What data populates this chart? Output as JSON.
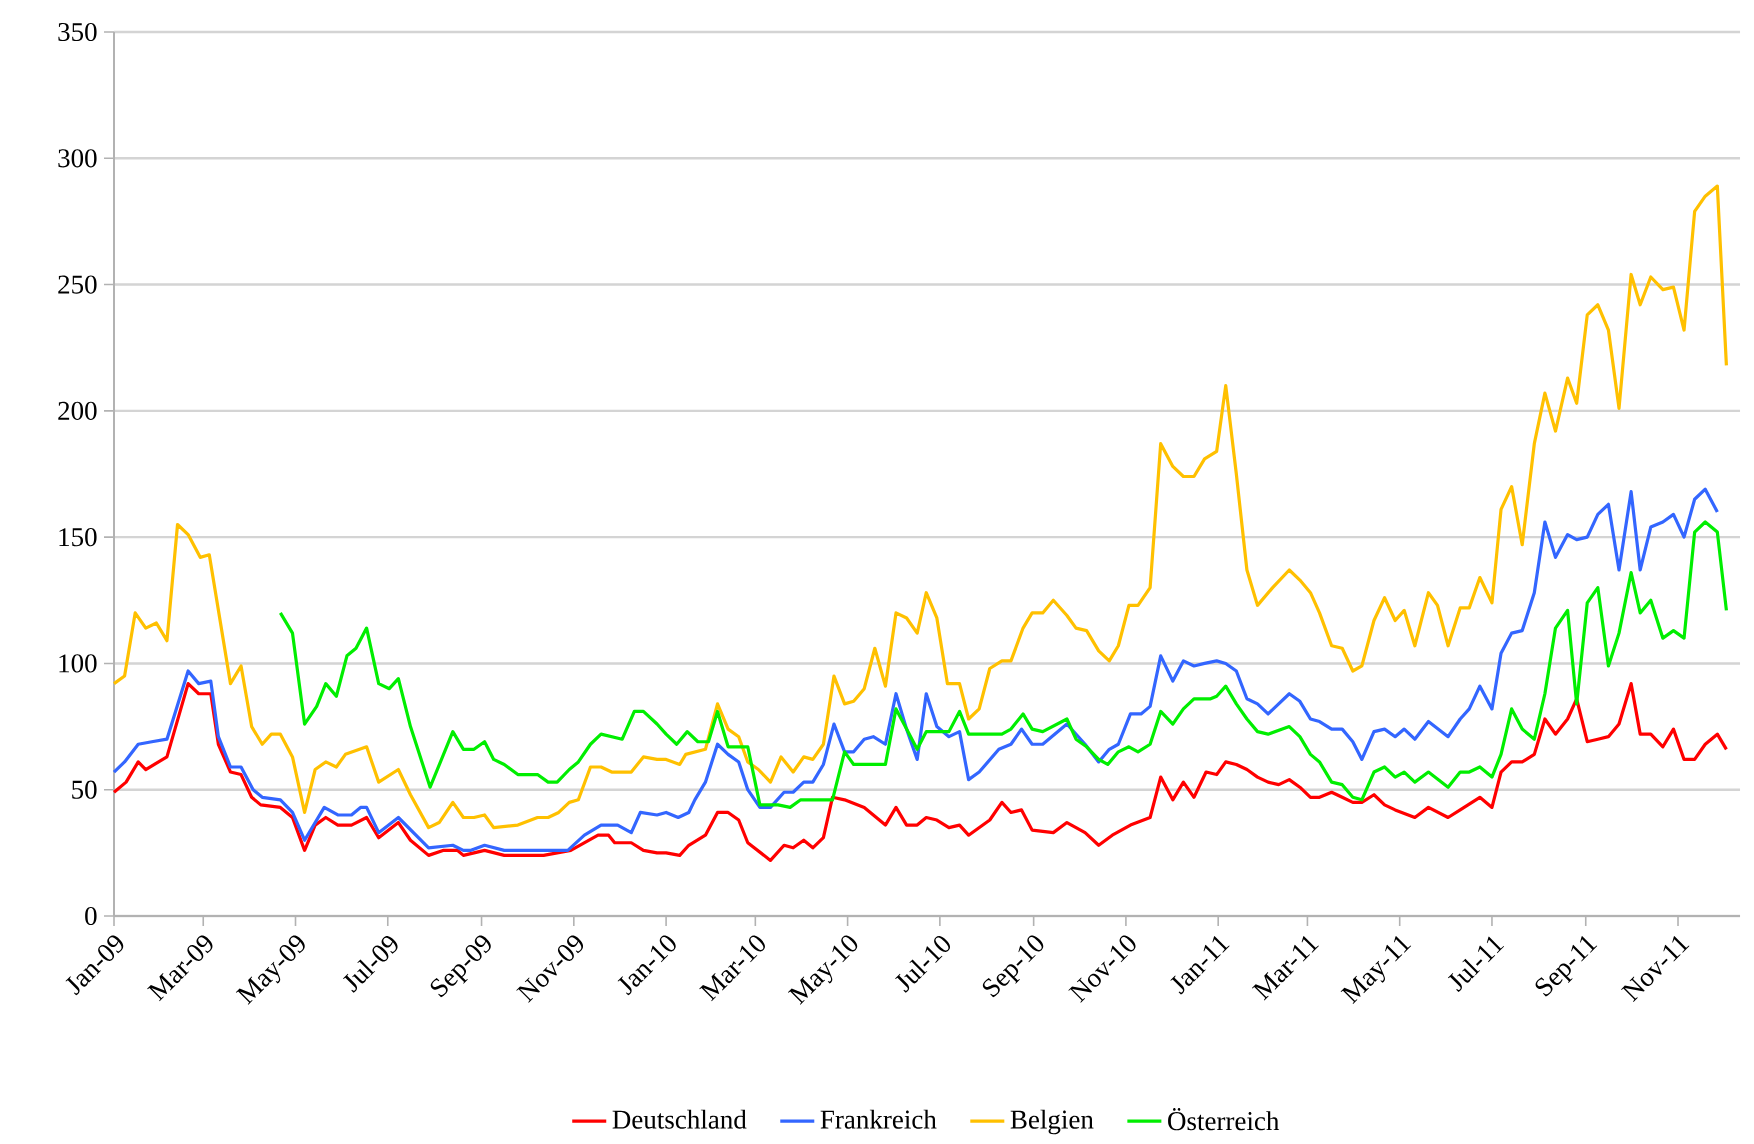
{
  "chart_data": {
    "type": "line",
    "grid": "y",
    "legend": "bottom",
    "marker": "none",
    "line_style": "solid",
    "ylim": [
      0,
      350
    ],
    "yticks": [
      0,
      50,
      100,
      150,
      200,
      250,
      300,
      350
    ],
    "xlim": [
      "2009-01-01",
      "2011-12-12"
    ],
    "xticks": [
      {
        "value": "2009-01-01",
        "label": "Jan-09"
      },
      {
        "value": "2009-03-01",
        "label": "Mar-09"
      },
      {
        "value": "2009-05-01",
        "label": "May-09"
      },
      {
        "value": "2009-07-01",
        "label": "Jul-09"
      },
      {
        "value": "2009-09-01",
        "label": "Sep-09"
      },
      {
        "value": "2009-11-01",
        "label": "Nov-09"
      },
      {
        "value": "2010-01-01",
        "label": "Jan-10"
      },
      {
        "value": "2010-03-01",
        "label": "Mar-10"
      },
      {
        "value": "2010-05-01",
        "label": "May-10"
      },
      {
        "value": "2010-07-01",
        "label": "Jul-10"
      },
      {
        "value": "2010-09-01",
        "label": "Sep-10"
      },
      {
        "value": "2010-11-01",
        "label": "Nov-10"
      },
      {
        "value": "2011-01-01",
        "label": "Jan-11"
      },
      {
        "value": "2011-03-01",
        "label": "Mar-11"
      },
      {
        "value": "2011-05-01",
        "label": "May-11"
      },
      {
        "value": "2011-07-01",
        "label": "Jul-11"
      },
      {
        "value": "2011-09-01",
        "label": "Sep-11"
      },
      {
        "value": "2011-11-01",
        "label": "Nov-11"
      }
    ],
    "series": [
      {
        "name": "Deutschland",
        "color": "#ff0000",
        "x": [
          "2009-01-01",
          "2009-01-09",
          "2009-01-17",
          "2009-01-22",
          "2009-02-05",
          "2009-02-19",
          "2009-02-26",
          "2009-03-06",
          "2009-03-11",
          "2009-03-19",
          "2009-03-26",
          "2009-04-02",
          "2009-04-08",
          "2009-04-21",
          "2009-04-29",
          "2009-05-07",
          "2009-05-14",
          "2009-05-21",
          "2009-05-29",
          "2009-06-07",
          "2009-06-17",
          "2009-06-25",
          "2009-07-08",
          "2009-07-16",
          "2009-07-28",
          "2009-08-07",
          "2009-08-16",
          "2009-08-20",
          "2009-09-03",
          "2009-09-16",
          "2009-10-12",
          "2009-10-30",
          "2009-11-17",
          "2009-11-24",
          "2009-11-28",
          "2009-12-09",
          "2009-12-17",
          "2009-12-26",
          "2010-01-01",
          "2010-01-10",
          "2010-01-16",
          "2010-01-27",
          "2010-02-04",
          "2010-02-11",
          "2010-02-18",
          "2010-02-24",
          "2010-03-11",
          "2010-03-20",
          "2010-03-26",
          "2010-04-02",
          "2010-04-08",
          "2010-04-15",
          "2010-04-21",
          "2010-04-29",
          "2010-05-12",
          "2010-05-26",
          "2010-06-02",
          "2010-06-09",
          "2010-06-16",
          "2010-06-22",
          "2010-06-29",
          "2010-07-07",
          "2010-07-14",
          "2010-07-20",
          "2010-08-03",
          "2010-08-11",
          "2010-08-17",
          "2010-08-24",
          "2010-08-31",
          "2010-09-14",
          "2010-09-23",
          "2010-10-05",
          "2010-10-14",
          "2010-10-23",
          "2010-11-04",
          "2010-11-17",
          "2010-11-24",
          "2010-12-02",
          "2010-12-09",
          "2010-12-16",
          "2010-12-24",
          "2010-12-31",
          "2011-01-06",
          "2011-01-13",
          "2011-01-20",
          "2011-01-27",
          "2011-02-03",
          "2011-02-10",
          "2011-02-17",
          "2011-02-24",
          "2011-03-03",
          "2011-03-09",
          "2011-03-17",
          "2011-03-24",
          "2011-03-31",
          "2011-04-06",
          "2011-04-14",
          "2011-04-21",
          "2011-04-28",
          "2011-05-11",
          "2011-05-20",
          "2011-06-02",
          "2011-06-10",
          "2011-06-23",
          "2011-07-01",
          "2011-07-07",
          "2011-07-14",
          "2011-07-21",
          "2011-07-29",
          "2011-08-05",
          "2011-08-12",
          "2011-08-20",
          "2011-08-26",
          "2011-09-02",
          "2011-09-09",
          "2011-09-16",
          "2011-09-23",
          "2011-10-01",
          "2011-10-07",
          "2011-10-14",
          "2011-10-22",
          "2011-10-29",
          "2011-11-05",
          "2011-11-12",
          "2011-11-19",
          "2011-11-27",
          "2011-12-03"
        ],
        "values": [
          49,
          53,
          61,
          58,
          63,
          92,
          88,
          88,
          68,
          57,
          56,
          47,
          44,
          43,
          39,
          26,
          36,
          39,
          36,
          36,
          39,
          31,
          37,
          30,
          24,
          26,
          26,
          24,
          26,
          24,
          24,
          26,
          32,
          32,
          29,
          29,
          26,
          25,
          25,
          24,
          28,
          32,
          41,
          41,
          38,
          29,
          22,
          28,
          27,
          30,
          27,
          31,
          47,
          46,
          43,
          36,
          43,
          36,
          36,
          39,
          38,
          35,
          36,
          32,
          38,
          45,
          41,
          42,
          34,
          33,
          37,
          33,
          28,
          32,
          36,
          39,
          55,
          46,
          53,
          47,
          57,
          56,
          61,
          60,
          58,
          55,
          53,
          52,
          54,
          51,
          47,
          47,
          49,
          47,
          45,
          45,
          48,
          44,
          42,
          39,
          43,
          39,
          42,
          47,
          43,
          57,
          61,
          61,
          64,
          78,
          72,
          78,
          86,
          69,
          70,
          71,
          76,
          92,
          72,
          72,
          67,
          74,
          62,
          62,
          68,
          72,
          66
        ]
      },
      {
        "name": "Frankreich",
        "color": "#3366ff",
        "x": [
          "2009-01-01",
          "2009-01-08",
          "2009-01-17",
          "2009-01-26",
          "2009-02-05",
          "2009-02-19",
          "2009-02-26",
          "2009-03-06",
          "2009-03-11",
          "2009-03-19",
          "2009-03-26",
          "2009-04-03",
          "2009-04-09",
          "2009-04-21",
          "2009-04-29",
          "2009-05-07",
          "2009-05-20",
          "2009-05-29",
          "2009-06-07",
          "2009-06-13",
          "2009-06-17",
          "2009-06-25",
          "2009-07-08",
          "2009-07-28",
          "2009-08-13",
          "2009-08-20",
          "2009-08-25",
          "2009-09-03",
          "2009-09-16",
          "2009-10-12",
          "2009-10-28",
          "2009-11-08",
          "2009-11-19",
          "2009-11-30",
          "2009-12-09",
          "2009-12-15",
          "2009-12-26",
          "2010-01-01",
          "2010-01-09",
          "2010-01-16",
          "2010-01-20",
          "2010-01-27",
          "2010-02-04",
          "2010-02-11",
          "2010-02-18",
          "2010-02-24",
          "2010-03-04",
          "2010-03-11",
          "2010-03-20",
          "2010-03-26",
          "2010-04-02",
          "2010-04-08",
          "2010-04-15",
          "2010-04-22",
          "2010-04-29",
          "2010-05-05",
          "2010-05-12",
          "2010-05-18",
          "2010-05-26",
          "2010-06-02",
          "2010-06-09",
          "2010-06-16",
          "2010-06-22",
          "2010-06-29",
          "2010-07-07",
          "2010-07-14",
          "2010-07-20",
          "2010-07-27",
          "2010-08-09",
          "2010-08-17",
          "2010-08-24",
          "2010-08-31",
          "2010-09-07",
          "2010-09-23",
          "2010-10-05",
          "2010-10-14",
          "2010-10-21",
          "2010-10-27",
          "2010-11-04",
          "2010-11-11",
          "2010-11-17",
          "2010-11-24",
          "2010-12-02",
          "2010-12-09",
          "2010-12-16",
          "2010-12-23",
          "2010-12-31",
          "2011-01-06",
          "2011-01-13",
          "2011-01-20",
          "2011-01-27",
          "2011-02-03",
          "2011-02-17",
          "2011-02-24",
          "2011-03-03",
          "2011-03-09",
          "2011-03-17",
          "2011-03-24",
          "2011-03-31",
          "2011-04-06",
          "2011-04-14",
          "2011-04-21",
          "2011-04-28",
          "2011-05-04",
          "2011-05-11",
          "2011-05-20",
          "2011-06-02",
          "2011-06-10",
          "2011-06-16",
          "2011-06-23",
          "2011-07-01",
          "2011-07-07",
          "2011-07-14",
          "2011-07-21",
          "2011-07-29",
          "2011-08-05",
          "2011-08-12",
          "2011-08-20",
          "2011-08-26",
          "2011-09-02",
          "2011-09-09",
          "2011-09-16",
          "2011-09-23",
          "2011-10-01",
          "2011-10-07",
          "2011-10-14",
          "2011-10-22",
          "2011-10-29",
          "2011-11-05",
          "2011-11-12",
          "2011-11-19",
          "2011-11-27"
        ],
        "values": [
          57,
          61,
          68,
          69,
          70,
          97,
          92,
          93,
          71,
          59,
          59,
          50,
          47,
          46,
          41,
          30,
          43,
          40,
          40,
          43,
          43,
          33,
          39,
          27,
          28,
          26,
          26,
          28,
          26,
          26,
          26,
          32,
          36,
          36,
          33,
          41,
          40,
          41,
          39,
          41,
          46,
          53,
          68,
          64,
          61,
          50,
          43,
          43,
          49,
          49,
          53,
          53,
          60,
          76,
          65,
          65,
          70,
          71,
          68,
          88,
          74,
          62,
          88,
          75,
          71,
          73,
          54,
          57,
          66,
          68,
          74,
          68,
          68,
          76,
          68,
          61,
          66,
          68,
          80,
          80,
          83,
          103,
          93,
          101,
          99,
          100,
          101,
          100,
          97,
          86,
          84,
          80,
          88,
          85,
          78,
          77,
          74,
          74,
          69,
          62,
          73,
          74,
          71,
          74,
          70,
          77,
          71,
          78,
          82,
          91,
          82,
          104,
          112,
          113,
          128,
          156,
          142,
          151,
          149,
          150,
          159,
          163,
          137,
          168,
          137,
          154,
          156,
          159,
          150,
          165,
          169,
          160
        ]
      },
      {
        "name": "Belgien",
        "color": "#ffc000",
        "x": [
          "2009-01-01",
          "2009-01-08",
          "2009-01-15",
          "2009-01-22",
          "2009-01-29",
          "2009-02-05",
          "2009-02-12",
          "2009-02-19",
          "2009-02-27",
          "2009-03-05",
          "2009-03-19",
          "2009-03-26",
          "2009-04-02",
          "2009-04-09",
          "2009-04-15",
          "2009-04-21",
          "2009-04-29",
          "2009-05-07",
          "2009-05-14",
          "2009-05-21",
          "2009-05-28",
          "2009-06-03",
          "2009-06-17",
          "2009-06-25",
          "2009-07-08",
          "2009-07-16",
          "2009-07-28",
          "2009-08-04",
          "2009-08-13",
          "2009-08-20",
          "2009-08-27",
          "2009-09-03",
          "2009-09-09",
          "2009-09-25",
          "2009-10-08",
          "2009-10-15",
          "2009-10-22",
          "2009-10-29",
          "2009-11-04",
          "2009-11-12",
          "2009-11-19",
          "2009-11-26",
          "2009-12-09",
          "2009-12-17",
          "2009-12-26",
          "2010-01-01",
          "2010-01-10",
          "2010-01-14",
          "2010-01-27",
          "2010-02-04",
          "2010-02-11",
          "2010-02-18",
          "2010-02-24",
          "2010-03-03",
          "2010-03-11",
          "2010-03-18",
          "2010-03-26",
          "2010-04-02",
          "2010-04-08",
          "2010-04-15",
          "2010-04-22",
          "2010-04-29",
          "2010-05-05",
          "2010-05-12",
          "2010-05-19",
          "2010-05-26",
          "2010-06-02",
          "2010-06-09",
          "2010-06-16",
          "2010-06-22",
          "2010-06-29",
          "2010-07-06",
          "2010-07-14",
          "2010-07-20",
          "2010-07-27",
          "2010-08-03",
          "2010-08-11",
          "2010-08-17",
          "2010-08-25",
          "2010-08-31",
          "2010-09-07",
          "2010-09-14",
          "2010-09-23",
          "2010-09-29",
          "2010-10-06",
          "2010-10-14",
          "2010-10-21",
          "2010-10-27",
          "2010-11-03",
          "2010-11-09",
          "2010-11-17",
          "2010-11-24",
          "2010-12-02",
          "2010-12-09",
          "2010-12-16",
          "2010-12-23",
          "2010-12-31",
          "2011-01-06",
          "2011-01-13",
          "2011-01-20",
          "2011-01-27",
          "2011-02-06",
          "2011-02-17",
          "2011-02-24",
          "2011-03-03",
          "2011-03-09",
          "2011-03-17",
          "2011-03-24",
          "2011-03-31",
          "2011-04-06",
          "2011-04-14",
          "2011-04-21",
          "2011-04-28",
          "2011-05-04",
          "2011-05-11",
          "2011-05-20",
          "2011-05-26",
          "2011-06-02",
          "2011-06-10",
          "2011-06-16",
          "2011-06-23",
          "2011-07-01",
          "2011-07-07",
          "2011-07-14",
          "2011-07-21",
          "2011-07-29",
          "2011-08-05",
          "2011-08-12",
          "2011-08-20",
          "2011-08-26",
          "2011-09-02",
          "2011-09-09",
          "2011-09-16",
          "2011-09-23",
          "2011-10-01",
          "2011-10-07",
          "2011-10-14",
          "2011-10-22",
          "2011-10-29",
          "2011-11-05",
          "2011-11-12",
          "2011-11-19",
          "2011-11-27",
          "2011-12-03"
        ],
        "values": [
          92,
          95,
          120,
          114,
          116,
          109,
          155,
          151,
          142,
          143,
          92,
          99,
          75,
          68,
          72,
          72,
          63,
          41,
          58,
          61,
          59,
          64,
          67,
          53,
          58,
          48,
          35,
          37,
          45,
          39,
          39,
          40,
          35,
          36,
          39,
          39,
          41,
          45,
          46,
          59,
          59,
          57,
          57,
          63,
          62,
          62,
          60,
          64,
          66,
          84,
          74,
          71,
          61,
          58,
          53,
          63,
          57,
          63,
          62,
          68,
          95,
          84,
          85,
          90,
          106,
          91,
          120,
          118,
          112,
          128,
          118,
          92,
          92,
          78,
          82,
          98,
          101,
          101,
          114,
          120,
          120,
          125,
          119,
          114,
          113,
          105,
          101,
          107,
          123,
          123,
          130,
          187,
          178,
          174,
          174,
          181,
          184,
          210,
          175,
          137,
          123,
          130,
          137,
          133,
          128,
          120,
          107,
          106,
          97,
          99,
          117,
          126,
          117,
          121,
          107,
          128,
          123,
          107,
          122,
          122,
          134,
          124,
          161,
          170,
          147,
          187,
          207,
          192,
          213,
          203,
          238,
          242,
          232,
          201,
          254,
          242,
          253,
          248,
          249,
          232,
          279,
          285,
          289,
          218
        ]
      },
      {
        "name": "Österreich",
        "color": "#00ee00",
        "x": [
          "2009-04-21",
          "2009-04-29",
          "2009-05-07",
          "2009-05-15",
          "2009-05-21",
          "2009-05-28",
          "2009-06-04",
          "2009-06-10",
          "2009-06-17",
          "2009-06-25",
          "2009-07-02",
          "2009-07-08",
          "2009-07-16",
          "2009-07-29",
          "2009-08-13",
          "2009-08-20",
          "2009-08-27",
          "2009-09-03",
          "2009-09-09",
          "2009-09-16",
          "2009-09-25",
          "2009-10-08",
          "2009-10-15",
          "2009-10-21",
          "2009-10-29",
          "2009-11-04",
          "2009-11-12",
          "2009-11-19",
          "2009-12-03",
          "2009-12-11",
          "2009-12-17",
          "2009-12-26",
          "2010-01-01",
          "2010-01-08",
          "2010-01-15",
          "2010-01-22",
          "2010-01-29",
          "2010-02-04",
          "2010-02-11",
          "2010-02-24",
          "2010-03-04",
          "2010-03-16",
          "2010-03-24",
          "2010-03-31",
          "2010-04-21",
          "2010-04-29",
          "2010-05-05",
          "2010-05-26",
          "2010-06-02",
          "2010-06-09",
          "2010-06-16",
          "2010-06-22",
          "2010-07-07",
          "2010-07-14",
          "2010-07-20",
          "2010-08-11",
          "2010-08-17",
          "2010-08-25",
          "2010-08-31",
          "2010-09-07",
          "2010-09-23",
          "2010-09-29",
          "2010-10-06",
          "2010-10-14",
          "2010-10-20",
          "2010-10-27",
          "2010-11-03",
          "2010-11-09",
          "2010-11-17",
          "2010-11-24",
          "2010-12-02",
          "2010-12-09",
          "2010-12-16",
          "2010-12-27",
          "2010-12-31",
          "2011-01-06",
          "2011-01-13",
          "2011-01-20",
          "2011-01-27",
          "2011-02-03",
          "2011-02-17",
          "2011-02-24",
          "2011-03-03",
          "2011-03-09",
          "2011-03-17",
          "2011-03-24",
          "2011-03-31",
          "2011-04-06",
          "2011-04-14",
          "2011-04-21",
          "2011-04-28",
          "2011-05-04",
          "2011-05-11",
          "2011-05-20",
          "2011-06-02",
          "2011-06-10",
          "2011-06-16",
          "2011-06-23",
          "2011-07-01",
          "2011-07-07",
          "2011-07-14",
          "2011-07-21",
          "2011-07-29",
          "2011-08-05",
          "2011-08-12",
          "2011-08-20",
          "2011-08-26",
          "2011-09-02",
          "2011-09-09",
          "2011-09-16",
          "2011-09-23",
          "2011-10-01",
          "2011-10-07",
          "2011-10-14",
          "2011-10-22",
          "2011-10-29",
          "2011-11-05",
          "2011-11-12",
          "2011-11-19",
          "2011-11-27",
          "2011-12-03"
        ],
        "values": [
          120,
          112,
          76,
          83,
          92,
          87,
          103,
          106,
          114,
          92,
          90,
          94,
          75,
          51,
          73,
          66,
          66,
          69,
          62,
          60,
          56,
          56,
          53,
          53,
          58,
          61,
          68,
          72,
          70,
          81,
          81,
          76,
          72,
          68,
          73,
          69,
          69,
          81,
          67,
          67,
          44,
          44,
          43,
          46,
          46,
          65,
          60,
          60,
          82,
          74,
          66,
          73,
          73,
          81,
          72,
          72,
          74,
          80,
          74,
          73,
          78,
          70,
          67,
          62,
          60,
          65,
          67,
          65,
          68,
          81,
          76,
          82,
          86,
          86,
          87,
          91,
          84,
          78,
          73,
          72,
          75,
          71,
          64,
          61,
          53,
          52,
          47,
          46,
          57,
          59,
          55,
          57,
          53,
          57,
          51,
          57,
          57,
          59,
          55,
          64,
          82,
          74,
          70,
          88,
          114,
          121,
          84,
          124,
          130,
          99,
          112,
          136,
          120,
          125,
          110,
          113,
          110,
          152,
          156,
          152,
          121
        ]
      }
    ]
  }
}
